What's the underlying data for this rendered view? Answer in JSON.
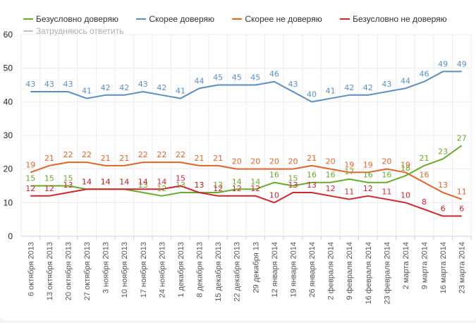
{
  "chart_data": {
    "type": "line",
    "title": "",
    "xlabel": "",
    "ylabel": "",
    "ylim": [
      0,
      60
    ],
    "yticks": [
      0,
      10,
      20,
      30,
      40,
      50,
      60
    ],
    "grid": true,
    "legend_position": "top-left",
    "categories": [
      "6 октября 2013",
      "13 октября 2013",
      "20 октября 2013",
      "27 октября 2013",
      "3 ноября 2013",
      "10 ноября 2013",
      "17 ноября 2013",
      "24 ноября 2013",
      "1 декабря 2013",
      "8 декабря 2013",
      "15 декабря 2013",
      "22 декабря 2013",
      "29 декабря 13",
      "12 января 2014",
      "19 января 2014",
      "26 января 2014",
      "2 февраля 2014",
      "9 февраля 2014",
      "16 февраля 2014",
      "23 февраля 2014",
      "2 марта 2014",
      "9 марта 2014",
      "16 марта 2014",
      "23 марта 2014"
    ],
    "series": [
      {
        "name": "Безусловно доверяю",
        "color": "#6aaa2c",
        "visible": true,
        "values": [
          15,
          15,
          15,
          14,
          14,
          14,
          13,
          12,
          13,
          13,
          13,
          14,
          14,
          16,
          15,
          16,
          16,
          17,
          16,
          16,
          18,
          21,
          23,
          27
        ]
      },
      {
        "name": "Скорее доверяю",
        "color": "#5b8ec2",
        "visible": true,
        "values": [
          43,
          43,
          43,
          41,
          42,
          42,
          43,
          42,
          41,
          44,
          45,
          45,
          45,
          46,
          43,
          40,
          41,
          42,
          42,
          43,
          44,
          46,
          49,
          49
        ]
      },
      {
        "name": "Скорее не доверяю",
        "color": "#e0652b",
        "visible": true,
        "values": [
          19,
          21,
          22,
          22,
          21,
          21,
          22,
          22,
          22,
          21,
          21,
          20,
          20,
          20,
          20,
          21,
          20,
          19,
          19,
          20,
          19,
          16,
          13,
          11
        ]
      },
      {
        "name": "Безусловно не доверяю",
        "color": "#d0262e",
        "visible": true,
        "values": [
          12,
          12,
          13,
          14,
          14,
          14,
          14,
          14,
          15,
          13,
          12,
          12,
          12,
          10,
          13,
          13,
          12,
          11,
          12,
          11,
          10,
          8,
          6,
          6
        ]
      },
      {
        "name": "Затрудняюсь ответить",
        "color": "#bbbbbb",
        "visible": false,
        "values": []
      }
    ]
  }
}
